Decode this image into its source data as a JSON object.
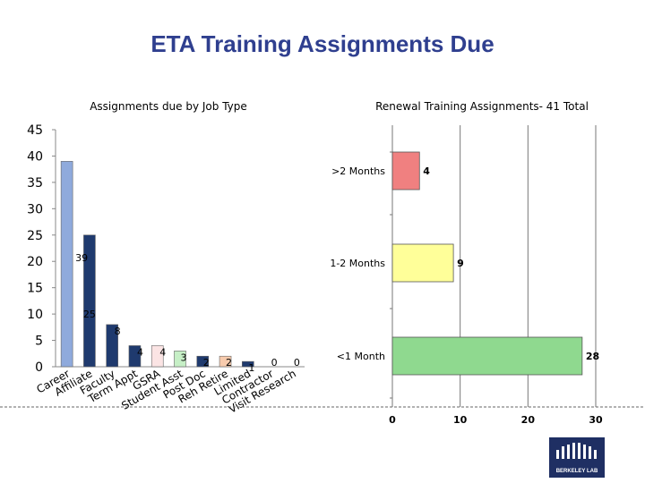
{
  "slide_title": "ETA Training Assignments Due",
  "chart_data": [
    {
      "type": "bar",
      "title": "Assignments due by Job Type",
      "categories": [
        "Career",
        "Affiliate",
        "Faculty",
        "Term Appt",
        "GSRA",
        "Student Asst",
        "Post Doc",
        "Reh Retire",
        "Limited",
        "Contractor",
        "Visit Research"
      ],
      "values": [
        39,
        25,
        8,
        4,
        4,
        3,
        2,
        2,
        1,
        0,
        0
      ],
      "colors": [
        "#8faadc",
        "#1f3a6e",
        "#1f3a6e",
        "#1f3a6e",
        "#fbe4e4",
        "#c6efc6",
        "#1f3a6e",
        "#f8cbad",
        "#1f3a6e",
        "#1f3a6e",
        "#1f3a6e"
      ],
      "yticks": [
        0,
        5,
        10,
        15,
        20,
        25,
        30,
        35,
        40,
        45
      ],
      "ylim": [
        0,
        45
      ]
    },
    {
      "type": "bar",
      "orientation": "horizontal",
      "title": "Renewal Training Assignments- 41 Total",
      "categories": [
        ">2 Months",
        "1-2 Months",
        "<1 Month"
      ],
      "values": [
        4,
        9,
        28
      ],
      "colors": [
        "#f08080",
        "#ffff99",
        "#8fd98f"
      ],
      "xticks": [
        0,
        10,
        20,
        30
      ],
      "xlim": [
        0,
        30
      ]
    }
  ],
  "logo": {
    "text": "BERKELEY LAB"
  }
}
